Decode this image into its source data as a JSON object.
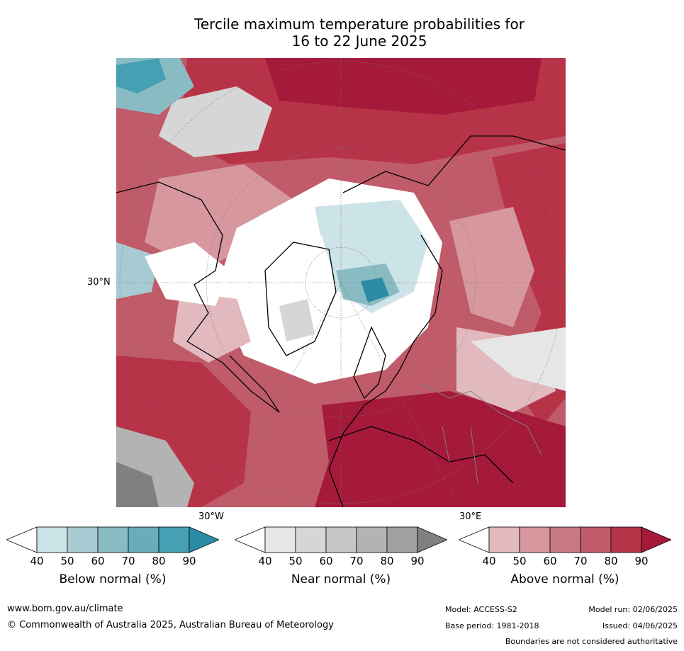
{
  "title_line1": "Tercile maximum temperature probabilities for",
  "title_line2": "16 to 22 June 2025",
  "map": {
    "projection": "north-polar-stereographic",
    "lat_label": "30°N",
    "lon_labels": [
      "30°W",
      "30°E"
    ],
    "colors": {
      "above": [
        "#e2b9be",
        "#d6979f",
        "#c97983",
        "#c05b69",
        "#b73448",
        "#a5193a"
      ],
      "below": [
        "#cce3e8",
        "#a7cbd2",
        "#89bbc3",
        "#6aacb9",
        "#45a0b3",
        "#2a8ca6"
      ],
      "near": [
        "#e6e6e6",
        "#d6d6d6",
        "#c6c6c6",
        "#b3b3b3",
        "#a0a0a0",
        "#808080"
      ],
      "land_outline": "#000000",
      "borders": "#808080"
    }
  },
  "colorbars": [
    {
      "label": "Below normal (%)",
      "ticks": [
        "40",
        "50",
        "60",
        "70",
        "80",
        "90"
      ],
      "colors": [
        "#ffffff",
        "#cce3e8",
        "#a7cbd2",
        "#89bbc3",
        "#6aacb9",
        "#45a0b3",
        "#2a8ca6"
      ]
    },
    {
      "label": "Near normal (%)",
      "ticks": [
        "40",
        "50",
        "60",
        "70",
        "80",
        "90"
      ],
      "colors": [
        "#ffffff",
        "#e6e6e6",
        "#d6d6d6",
        "#c6c6c6",
        "#b3b3b3",
        "#a0a0a0",
        "#808080"
      ]
    },
    {
      "label": "Above normal (%)",
      "ticks": [
        "40",
        "50",
        "60",
        "70",
        "80",
        "90"
      ],
      "colors": [
        "#ffffff",
        "#e2b9be",
        "#d6979f",
        "#c97983",
        "#c05b69",
        "#b73448",
        "#a5193a"
      ]
    }
  ],
  "footer": {
    "url": "www.bom.gov.au/climate",
    "copyright": "© Commonwealth of Australia 2025, Australian Bureau of Meteorology",
    "model": "Model: ACCESS-S2",
    "base_period": "Base period: 1981-2018",
    "model_run": "Model run: 02/06/2025",
    "issued": "Issued: 04/06/2025",
    "disclaimer": "Boundaries are not considered authoritative"
  }
}
